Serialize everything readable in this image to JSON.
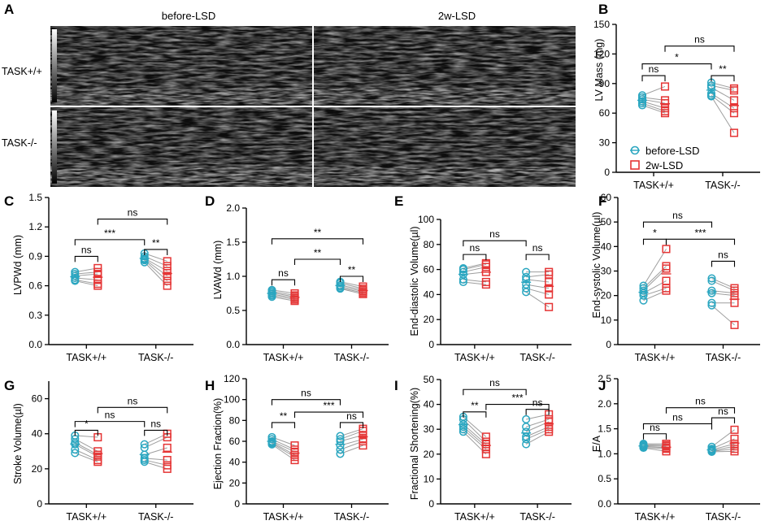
{
  "colors": {
    "before": "#2aa6c0",
    "after": "#e53535",
    "pair_line": "#9e9e9e",
    "axis": "#000000"
  },
  "echo_panel": {
    "label": "A",
    "col_headers": [
      "before-LSD",
      "2w-LSD"
    ],
    "row_headers": [
      "TASK+/+",
      "TASK-/-"
    ]
  },
  "legend": {
    "before": "before-LSD",
    "after": "2w-LSD"
  },
  "chart_data": [
    {
      "panel": "B",
      "type": "scatter",
      "ylabel": "LV Mass (mg)",
      "yticks": [
        "0",
        "30",
        "60",
        "90",
        "120",
        "150"
      ],
      "ylim": [
        0,
        150
      ],
      "categories": [
        "TASK+/+",
        "TASK-/-"
      ],
      "groups": [
        {
          "name": "TASK+/+",
          "before": [
            78,
            76,
            74,
            72,
            70,
            68
          ],
          "after": [
            87,
            73,
            70,
            65,
            62,
            60
          ]
        },
        {
          "name": "TASK-/-",
          "before": [
            91,
            88,
            86,
            80,
            78,
            77
          ],
          "after": [
            85,
            83,
            73,
            65,
            60,
            40
          ]
        }
      ],
      "annotations": [
        {
          "text": "ns",
          "from": [
            0,
            "b"
          ],
          "to": [
            0,
            "a"
          ],
          "y": 98
        },
        {
          "text": "**",
          "from": [
            1,
            "b"
          ],
          "to": [
            1,
            "a"
          ],
          "y": 98
        },
        {
          "text": "*",
          "from": [
            0,
            "b"
          ],
          "to": [
            1,
            "b"
          ],
          "y": 110
        },
        {
          "text": "ns",
          "from": [
            0,
            "a"
          ],
          "to": [
            1,
            "a"
          ],
          "y": 128
        }
      ]
    },
    {
      "panel": "C",
      "type": "scatter",
      "ylabel": "LVPWd (mm)",
      "yticks": [
        "0.0",
        "0.3",
        "0.6",
        "0.9",
        "1.2",
        "1.5"
      ],
      "ylim": [
        0,
        1.5
      ],
      "categories": [
        "TASK+/+",
        "TASK-/-"
      ],
      "groups": [
        {
          "name": "TASK+/+",
          "before": [
            0.74,
            0.72,
            0.7,
            0.68,
            0.66,
            0.65
          ],
          "after": [
            0.78,
            0.74,
            0.72,
            0.66,
            0.62,
            0.6
          ]
        },
        {
          "name": "TASK-/-",
          "before": [
            0.93,
            0.9,
            0.88,
            0.87,
            0.86,
            0.84
          ],
          "after": [
            0.85,
            0.8,
            0.75,
            0.7,
            0.65,
            0.6
          ]
        }
      ],
      "annotations": [
        {
          "text": "ns",
          "from": [
            0,
            "b"
          ],
          "to": [
            0,
            "a"
          ],
          "y": 0.9
        },
        {
          "text": "**",
          "from": [
            1,
            "b"
          ],
          "to": [
            1,
            "a"
          ],
          "y": 0.97
        },
        {
          "text": "***",
          "from": [
            0,
            "b"
          ],
          "to": [
            1,
            "b"
          ],
          "y": 1.07
        },
        {
          "text": "ns",
          "from": [
            0,
            "a"
          ],
          "to": [
            1,
            "a"
          ],
          "y": 1.28
        }
      ]
    },
    {
      "panel": "D",
      "type": "scatter",
      "ylabel": "LVAWd (mm)",
      "yticks": [
        "0.0",
        "0.5",
        "1.0",
        "1.5",
        "2.0"
      ],
      "ylim": [
        0,
        2.0
      ],
      "categories": [
        "TASK+/+",
        "TASK-/-"
      ],
      "groups": [
        {
          "name": "TASK+/+",
          "before": [
            0.8,
            0.78,
            0.76,
            0.74,
            0.72,
            0.7
          ],
          "after": [
            0.75,
            0.72,
            0.7,
            0.68,
            0.66,
            0.64
          ]
        },
        {
          "name": "TASK-/-",
          "before": [
            0.92,
            0.9,
            0.87,
            0.85,
            0.83,
            0.82
          ],
          "after": [
            0.85,
            0.82,
            0.8,
            0.78,
            0.76,
            0.74
          ]
        }
      ],
      "annotations": [
        {
          "text": "ns",
          "from": [
            0,
            "b"
          ],
          "to": [
            0,
            "a"
          ],
          "y": 0.95
        },
        {
          "text": "**",
          "from": [
            1,
            "b"
          ],
          "to": [
            1,
            "a"
          ],
          "y": 1.0
        },
        {
          "text": "**",
          "from": [
            0,
            "a"
          ],
          "to": [
            1,
            "b"
          ],
          "y": 1.25
        },
        {
          "text": "**",
          "from": [
            0,
            "b"
          ],
          "to": [
            1,
            "a"
          ],
          "y": 1.55
        }
      ]
    },
    {
      "panel": "E",
      "type": "scatter",
      "ylabel": "End-diastolic Volume(µl)",
      "yticks": [
        "0",
        "20",
        "40",
        "60",
        "80",
        "100"
      ],
      "ylim": [
        0,
        100
      ],
      "categories": [
        "TASK+/+",
        "TASK-/-"
      ],
      "groups": [
        {
          "name": "TASK+/+",
          "before": [
            61,
            60,
            58,
            56,
            52,
            50
          ],
          "after": [
            65,
            64,
            62,
            58,
            50,
            48
          ]
        },
        {
          "name": "TASK-/-",
          "before": [
            58,
            54,
            52,
            48,
            45,
            42
          ],
          "after": [
            58,
            56,
            50,
            45,
            40,
            30
          ]
        }
      ],
      "annotations": [
        {
          "text": "ns",
          "from": [
            0,
            "b"
          ],
          "to": [
            0,
            "a"
          ],
          "y": 72
        },
        {
          "text": "ns",
          "from": [
            1,
            "b"
          ],
          "to": [
            1,
            "a"
          ],
          "y": 72
        },
        {
          "text": "ns",
          "from": [
            0,
            "b"
          ],
          "to": [
            1,
            "b"
          ],
          "y": 83
        }
      ]
    },
    {
      "panel": "F",
      "type": "scatter",
      "ylabel": "End-systolic Volume(µl)",
      "yticks": [
        "0",
        "10",
        "20",
        "30",
        "40",
        "50",
        "60"
      ],
      "ylim": [
        0,
        60
      ],
      "categories": [
        "TASK+/+",
        "TASK-/-"
      ],
      "groups": [
        {
          "name": "TASK+/+",
          "before": [
            24,
            23,
            22,
            21,
            20,
            18
          ],
          "after": [
            39,
            32,
            31,
            26,
            23,
            22
          ]
        },
        {
          "name": "TASK-/-",
          "before": [
            27,
            26,
            22,
            21,
            17,
            16
          ],
          "after": [
            23,
            22,
            21,
            20,
            17,
            8
          ]
        }
      ],
      "annotations": [
        {
          "text": "*",
          "from": [
            0,
            "b"
          ],
          "to": [
            0,
            "a"
          ],
          "y": 43
        },
        {
          "text": "ns",
          "from": [
            1,
            "b"
          ],
          "to": [
            1,
            "a"
          ],
          "y": 34
        },
        {
          "text": "***",
          "from": [
            0,
            "a"
          ],
          "to": [
            1,
            "a"
          ],
          "y": 43
        },
        {
          "text": "ns",
          "from": [
            0,
            "b"
          ],
          "to": [
            1,
            "b"
          ],
          "y": 50
        }
      ]
    },
    {
      "panel": "G",
      "type": "scatter",
      "ylabel": "Stroke Volume(µl)",
      "yticks": [
        "0",
        "20",
        "40",
        "60"
      ],
      "ylim": [
        0,
        70
      ],
      "categories": [
        "TASK+/+",
        "TASK-/-"
      ],
      "groups": [
        {
          "name": "TASK+/+",
          "before": [
            39,
            37,
            35,
            34,
            31,
            29
          ],
          "after": [
            38,
            30,
            28,
            27,
            25,
            24
          ]
        },
        {
          "name": "TASK-/-",
          "before": [
            34,
            32,
            28,
            26,
            25,
            24
          ],
          "after": [
            40,
            38,
            32,
            25,
            22,
            20
          ]
        }
      ],
      "annotations": [
        {
          "text": "*",
          "from": [
            0,
            "b"
          ],
          "to": [
            0,
            "a"
          ],
          "y": 42
        },
        {
          "text": "ns",
          "from": [
            1,
            "b"
          ],
          "to": [
            1,
            "a"
          ],
          "y": 42
        },
        {
          "text": "ns",
          "from": [
            0,
            "b"
          ],
          "to": [
            1,
            "b"
          ],
          "y": 47
        },
        {
          "text": "ns",
          "from": [
            0,
            "a"
          ],
          "to": [
            1,
            "a"
          ],
          "y": 55
        }
      ]
    },
    {
      "panel": "H",
      "type": "scatter",
      "ylabel": "Ejection Fraction(%)",
      "yticks": [
        "0",
        "20",
        "40",
        "60",
        "80",
        "100",
        "120"
      ],
      "ylim": [
        0,
        120
      ],
      "categories": [
        "TASK+/+",
        "TASK-/-"
      ],
      "groups": [
        {
          "name": "TASK+/+",
          "before": [
            64,
            62,
            60,
            59,
            58,
            57
          ],
          "after": [
            56,
            52,
            50,
            47,
            45,
            42
          ]
        },
        {
          "name": "TASK-/-",
          "before": [
            65,
            62,
            60,
            56,
            52,
            48
          ],
          "after": [
            72,
            70,
            66,
            62,
            60,
            56
          ]
        }
      ],
      "annotations": [
        {
          "text": "**",
          "from": [
            0,
            "b"
          ],
          "to": [
            0,
            "a"
          ],
          "y": 78
        },
        {
          "text": "ns",
          "from": [
            1,
            "b"
          ],
          "to": [
            1,
            "a"
          ],
          "y": 78
        },
        {
          "text": "***",
          "from": [
            0,
            "a"
          ],
          "to": [
            1,
            "a"
          ],
          "y": 88
        },
        {
          "text": "ns",
          "from": [
            0,
            "b"
          ],
          "to": [
            1,
            "b"
          ],
          "y": 100
        }
      ]
    },
    {
      "panel": "I",
      "type": "scatter",
      "ylabel": "Fractional Shortening(%)",
      "yticks": [
        "0",
        "10",
        "20",
        "30",
        "40",
        "50"
      ],
      "ylim": [
        0,
        50
      ],
      "categories": [
        "TASK+/+",
        "TASK-/-"
      ],
      "groups": [
        {
          "name": "TASK+/+",
          "before": [
            35,
            34,
            32,
            31,
            30,
            29
          ],
          "after": [
            27,
            25,
            24,
            23,
            22,
            20
          ]
        },
        {
          "name": "TASK-/-",
          "before": [
            34,
            31,
            29,
            27,
            26,
            24
          ],
          "after": [
            36,
            34,
            33,
            31,
            30,
            29
          ]
        }
      ],
      "annotations": [
        {
          "text": "**",
          "from": [
            0,
            "b"
          ],
          "to": [
            0,
            "a"
          ],
          "y": 37
        },
        {
          "text": "ns",
          "from": [
            1,
            "b"
          ],
          "to": [
            1,
            "a"
          ],
          "y": 38
        },
        {
          "text": "***",
          "from": [
            0,
            "a"
          ],
          "to": [
            1,
            "a"
          ],
          "y": 40
        },
        {
          "text": "ns",
          "from": [
            0,
            "b"
          ],
          "to": [
            1,
            "b"
          ],
          "y": 46
        }
      ]
    },
    {
      "panel": "J",
      "type": "scatter",
      "ylabel": "E/A",
      "yticks": [
        "0.0",
        "0.5",
        "1.0",
        "1.5",
        "2.0",
        "2.5"
      ],
      "ylim": [
        0,
        2.5
      ],
      "categories": [
        "TASK+/+",
        "TASK-/-"
      ],
      "groups": [
        {
          "name": "TASK+/+",
          "before": [
            1.2,
            1.18,
            1.16,
            1.15,
            1.13,
            1.12
          ],
          "after": [
            1.2,
            1.17,
            1.15,
            1.12,
            1.1,
            1.05
          ]
        },
        {
          "name": "TASK-/-",
          "before": [
            1.14,
            1.1,
            1.08,
            1.06,
            1.05,
            1.04
          ],
          "after": [
            1.48,
            1.3,
            1.2,
            1.15,
            1.1,
            1.05
          ]
        }
      ],
      "annotations": [
        {
          "text": "ns",
          "from": [
            0,
            "b"
          ],
          "to": [
            0,
            "a"
          ],
          "y": 1.4
        },
        {
          "text": "ns",
          "from": [
            1,
            "b"
          ],
          "to": [
            1,
            "a"
          ],
          "y": 1.72
        },
        {
          "text": "ns",
          "from": [
            0,
            "b"
          ],
          "to": [
            1,
            "b"
          ],
          "y": 1.6
        },
        {
          "text": "ns",
          "from": [
            0,
            "a"
          ],
          "to": [
            1,
            "a"
          ],
          "y": 1.92
        }
      ]
    }
  ]
}
